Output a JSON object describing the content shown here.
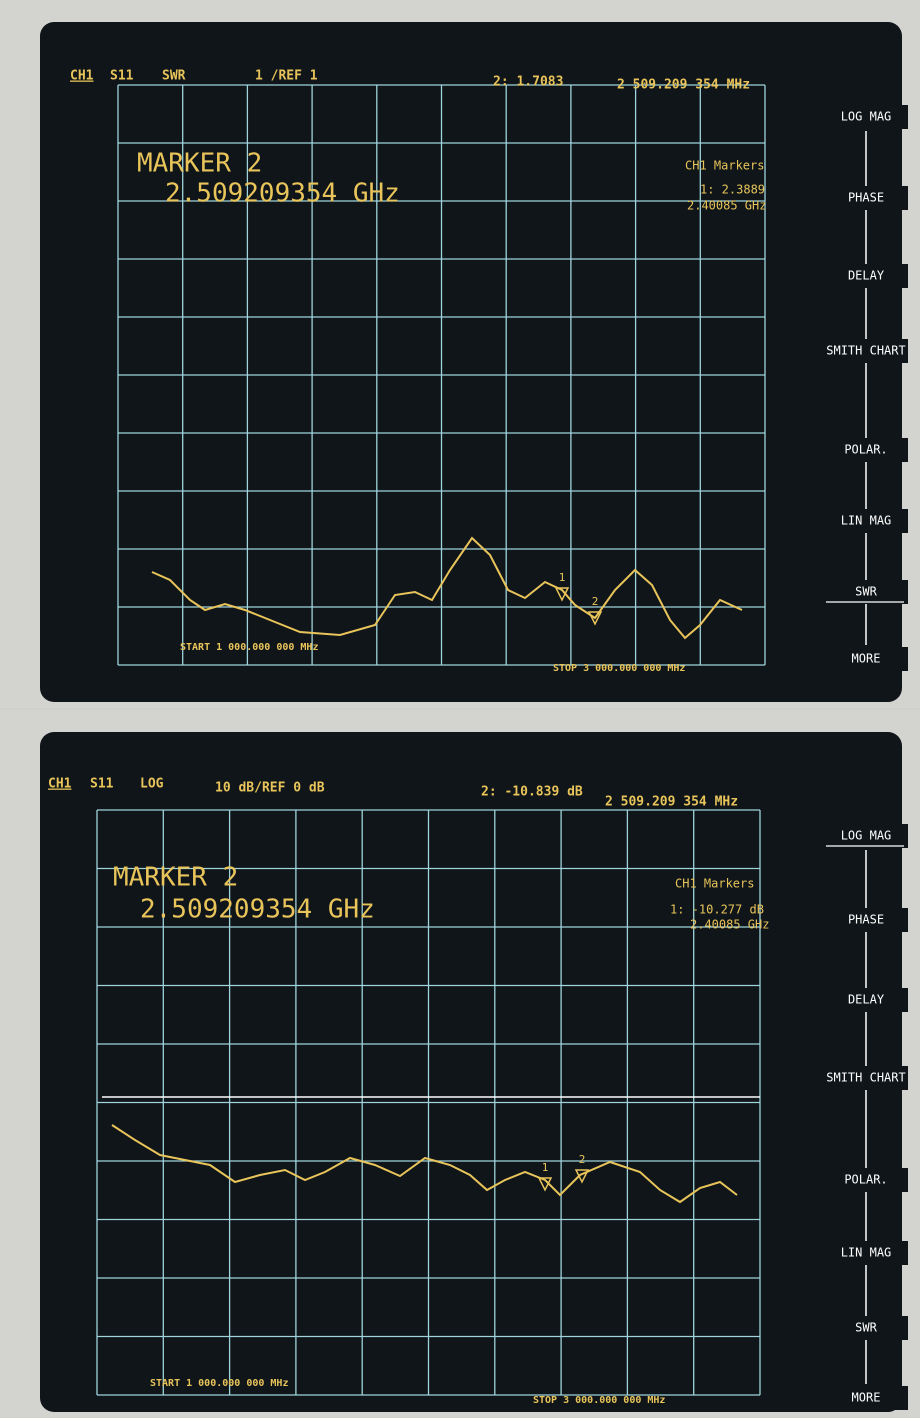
{
  "screens": [
    {
      "header": {
        "channel": "CH1",
        "parameter": "S11",
        "format": "SWR",
        "scale": "1  /REF 1",
        "marker_readout": "2: 1.7083",
        "marker_frequency": "2 509.209 354 MHz"
      },
      "marker_title": "MARKER 2",
      "marker_value": "2.509209354 GHz",
      "marker_table": {
        "title": "CH1 Markers",
        "marker1_value": "1: 2.3889",
        "marker1_frequency": "2.40085 GHz"
      },
      "start": "START 1 000.000 000 MHz",
      "stop": "STOP 3 000.000 000 MHz",
      "marker_labels": [
        "1",
        "2"
      ],
      "softkeys": [
        "LOG MAG",
        "PHASE",
        "DELAY",
        "SMITH CHART",
        "POLAR.",
        "LIN MAG",
        "SWR",
        "MORE"
      ]
    },
    {
      "header": {
        "channel": "CH1",
        "parameter": "S11",
        "format": "LOG",
        "scale": "10 dB/REF 0 dB",
        "marker_readout": "2: -10.839 dB",
        "marker_frequency": "2 509.209 354 MHz"
      },
      "marker_title": "MARKER 2",
      "marker_value": "2.509209354 GHz",
      "marker_table": {
        "title": "CH1 Markers",
        "marker1_value": "1: -10.277 dB",
        "marker1_frequency": "2.40085 GHz"
      },
      "start": "START 1 000.000 000 MHz",
      "stop": "STOP 3 000.000 000 MHz",
      "marker_labels": [
        "1",
        "2"
      ],
      "softkeys": [
        "LOG MAG",
        "PHASE",
        "DELAY",
        "SMITH CHART",
        "POLAR.",
        "LIN MAG",
        "SWR",
        "MORE"
      ]
    }
  ]
}
